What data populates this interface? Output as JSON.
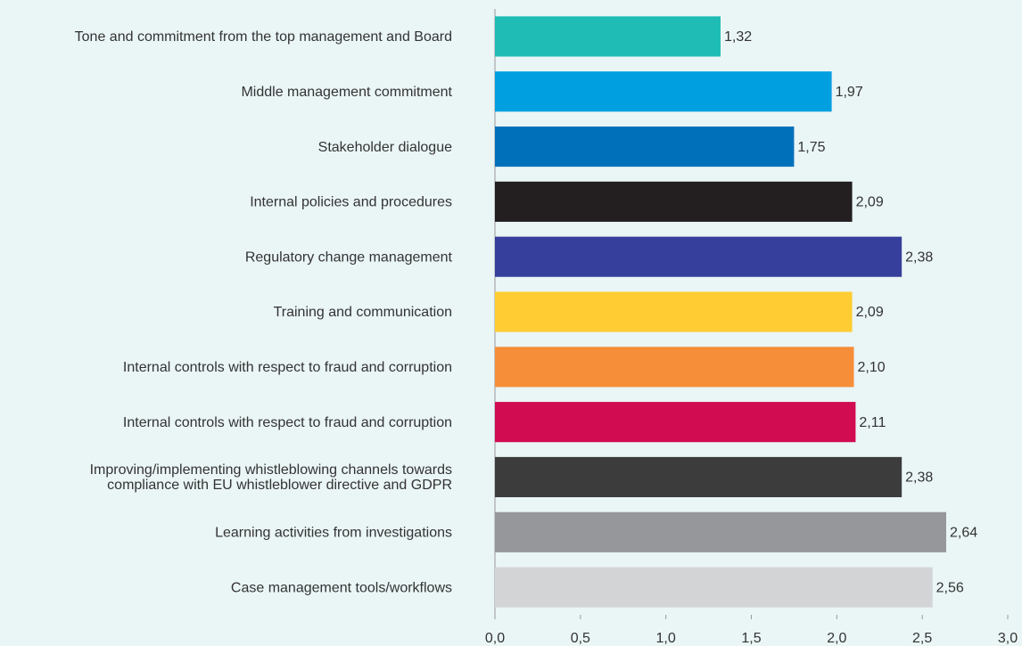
{
  "chart_data": {
    "type": "barh",
    "categories": [
      "Tone and commitment from the top management and Board",
      "Middle management commitment",
      "Stakeholder dialogue",
      "Internal policies and procedures",
      "Regulatory change management",
      "Training and communication",
      "Internal controls with respect to fraud and corruption",
      "Internal controls with respect to fraud and corruption",
      "Improving/implementing whistleblowing channels towards\ncompliance with EU whistleblower directive and GDPR",
      "Learning activities from investigations",
      "Case management tools/workflows"
    ],
    "values": [
      1.32,
      1.97,
      1.75,
      2.09,
      2.38,
      2.09,
      2.1,
      2.11,
      2.38,
      2.64,
      2.56
    ],
    "value_labels": [
      "1,32",
      "1,97",
      "1,75",
      "2,09",
      "2,38",
      "2,09",
      "2,10",
      "2,11",
      "2,38",
      "2,64",
      "2,56"
    ],
    "colors": [
      "#1fbcb5",
      "#009fe0",
      "#0070bb",
      "#231f20",
      "#373f9c",
      "#ffcd33",
      "#f68d39",
      "#d10c51",
      "#3c3c3c",
      "#96979a",
      "#d3d4d6"
    ],
    "xlim": [
      0,
      3.0
    ],
    "xticks": [
      {
        "value": 0,
        "label": "0,0"
      },
      {
        "value": 0.5,
        "label": "0,5"
      },
      {
        "value": 1.0,
        "label": "1,0"
      },
      {
        "value": 1.5,
        "label": "1,5"
      },
      {
        "value": 2.0,
        "label": "2,0"
      },
      {
        "value": 2.5,
        "label": "2,5"
      },
      {
        "value": 3.0,
        "label": "3,0"
      }
    ],
    "grid": false
  }
}
